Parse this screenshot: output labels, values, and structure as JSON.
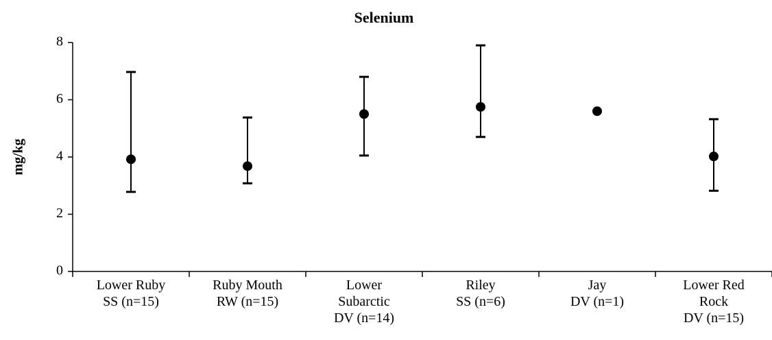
{
  "chart_data": {
    "type": "errorpoint",
    "title": "Selenium",
    "y_label": "mg/kg",
    "categories": [
      "Lower Ruby\nSS (n=15)",
      "Ruby Mouth\nRW (n=15)",
      "Lower\nSubarctic\nDV (n=14)",
      "Riley\nSS (n=6)",
      "Jay\nDV (n=1)",
      "Lower Red\nRock\nDV (n=15)"
    ],
    "series": [
      {
        "name": "Selenium",
        "color": "#000000",
        "values": [
          3.92,
          3.68,
          5.5,
          5.75,
          5.6,
          4.02
        ],
        "low": [
          2.78,
          3.08,
          4.05,
          4.7,
          null,
          2.82
        ],
        "high": [
          6.97,
          5.38,
          6.8,
          7.9,
          null,
          5.32
        ]
      }
    ],
    "ylim": [
      0,
      8
    ],
    "yticks": [
      0,
      2,
      4,
      6,
      8
    ]
  }
}
